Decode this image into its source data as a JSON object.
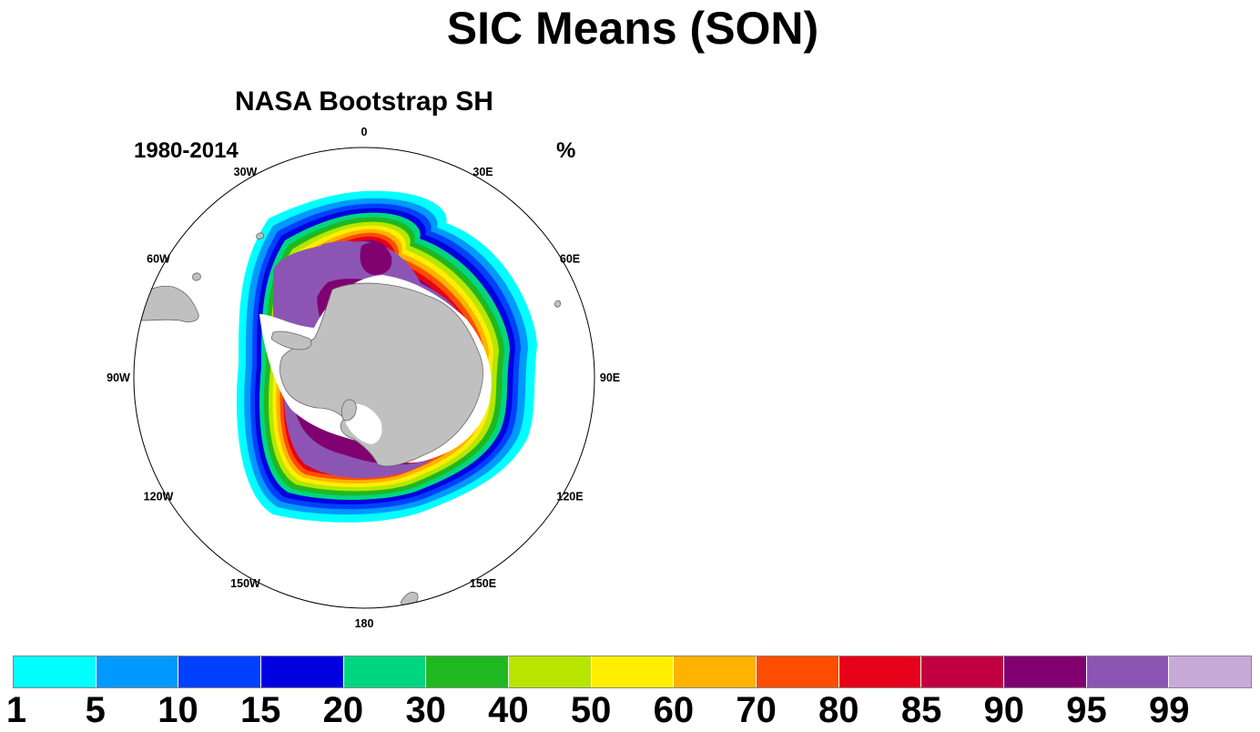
{
  "title": "SIC Means (SON)",
  "panel": {
    "title": "NASA Bootstrap SH",
    "left_string": "1980-2014",
    "right_string": "%"
  },
  "map": {
    "projection": "south polar stereographic",
    "longitude_labels": [
      "0",
      "30E",
      "60E",
      "90E",
      "120E",
      "150E",
      "180",
      "150W",
      "120W",
      "90W",
      "60W",
      "30W"
    ],
    "land_color": "#c0c0c0",
    "missing_color": "#ffffff"
  },
  "colorbar": {
    "colors": [
      "#00ffff",
      "#0099ff",
      "#0040ff",
      "#0000e0",
      "#00d680",
      "#20b820",
      "#b8e600",
      "#ffee00",
      "#ffb300",
      "#ff4d00",
      "#e6001a",
      "#c00040",
      "#800070",
      "#8c55b4",
      "#c8aad8"
    ],
    "labels": [
      "1",
      "5",
      "10",
      "15",
      "20",
      "30",
      "40",
      "50",
      "60",
      "70",
      "80",
      "85",
      "90",
      "95",
      "99"
    ]
  }
}
